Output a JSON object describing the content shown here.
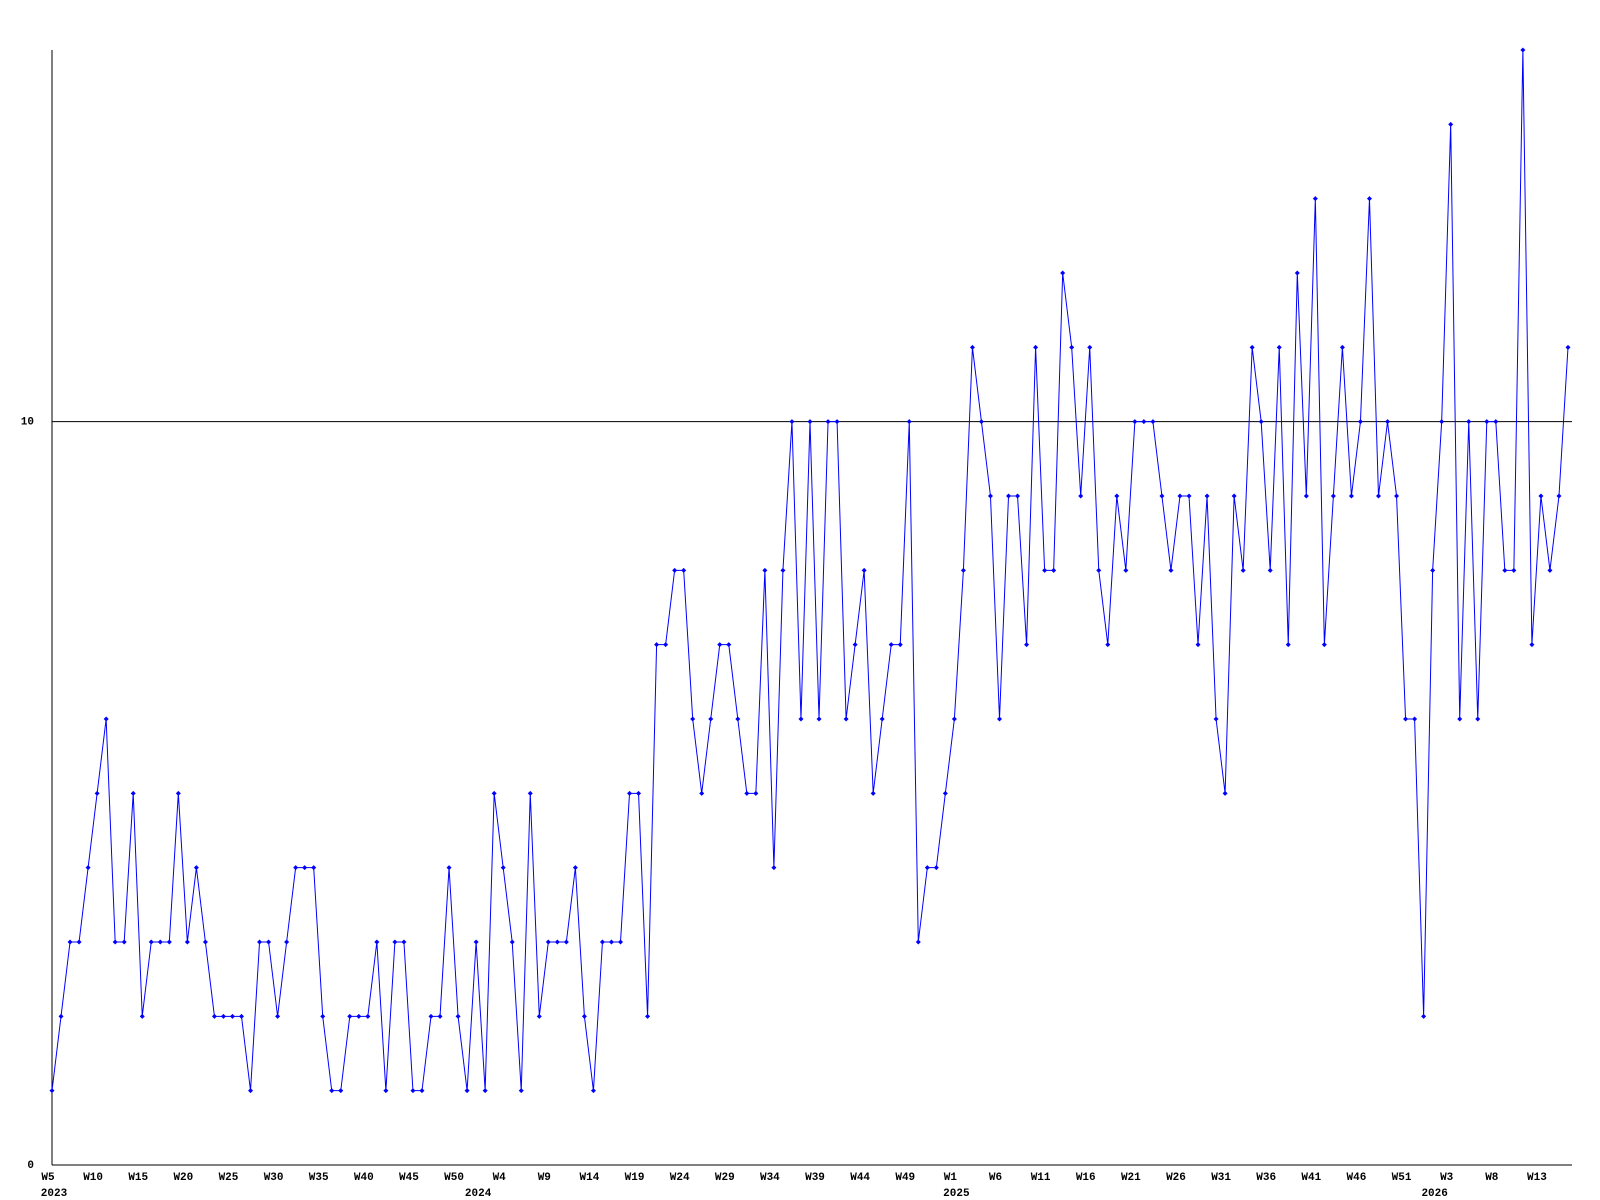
{
  "chart_data": {
    "type": "line",
    "color": "#0000ff",
    "ylim": [
      0,
      15
    ],
    "yticks": [
      0,
      10
    ],
    "grid": true,
    "categories": [
      "W5",
      null,
      null,
      null,
      null,
      "W10",
      null,
      null,
      null,
      null,
      "W15",
      null,
      null,
      null,
      null,
      "W20",
      null,
      null,
      null,
      null,
      "W25",
      null,
      null,
      null,
      null,
      "W30",
      null,
      null,
      null,
      null,
      "W35",
      null,
      null,
      null,
      null,
      "W40",
      null,
      null,
      null,
      null,
      "W45",
      null,
      null,
      null,
      null,
      "W50",
      null,
      null,
      null,
      null,
      "W4",
      null,
      null,
      null,
      null,
      "W9",
      null,
      null,
      null,
      null,
      "W14",
      null,
      null,
      null,
      null,
      "W19",
      null,
      null,
      null,
      null,
      "W24",
      null,
      null,
      null,
      null,
      "W29",
      null,
      null,
      null,
      null,
      "W34",
      null,
      null,
      null,
      null,
      "W39",
      null,
      null,
      null,
      null,
      "W44",
      null,
      null,
      null,
      null,
      "W49",
      null,
      null,
      null,
      null,
      "W1",
      null,
      null,
      null,
      null,
      "W6",
      null,
      null,
      null,
      null,
      "W11",
      null,
      null,
      null,
      null,
      "W16",
      null,
      null,
      null,
      null,
      "W21",
      null,
      null,
      null,
      null,
      "W26",
      null,
      null,
      null,
      null,
      "W31",
      null,
      null,
      null,
      null,
      "W36",
      null,
      null,
      null,
      null,
      "W41",
      null,
      null,
      null,
      null,
      "W46",
      null,
      null,
      null,
      null,
      "W51",
      null,
      null,
      null,
      null,
      "W3",
      null,
      null,
      null,
      null,
      "W8",
      null,
      null,
      null,
      null,
      "W13",
      null,
      null,
      null
    ],
    "x_groups": [
      {
        "label": "2023",
        "count": 47
      },
      {
        "label": "2024",
        "count": 53
      },
      {
        "label": "2025",
        "count": 53
      },
      {
        "label": "2026",
        "count": 16
      }
    ],
    "values": [
      1,
      2,
      3,
      3,
      4,
      5,
      6,
      3,
      3,
      5,
      2,
      3,
      3,
      3,
      5,
      3,
      4,
      3,
      2,
      2,
      2,
      2,
      1,
      3,
      3,
      2,
      3,
      4,
      4,
      4,
      2,
      1,
      1,
      2,
      2,
      2,
      3,
      1,
      3,
      3,
      1,
      1,
      2,
      2,
      4,
      2,
      1,
      3,
      1,
      5,
      4,
      3,
      1,
      5,
      2,
      3,
      3,
      3,
      4,
      2,
      1,
      3,
      3,
      3,
      5,
      5,
      2,
      7,
      7,
      8,
      8,
      6,
      5,
      6,
      7,
      7,
      6,
      5,
      5,
      8,
      4,
      8,
      10,
      6,
      10,
      6,
      10,
      10,
      6,
      7,
      8,
      5,
      6,
      7,
      7,
      10,
      3,
      4,
      4,
      5,
      6,
      8,
      11,
      10,
      9,
      6,
      9,
      9,
      7,
      11,
      8,
      8,
      12,
      11,
      9,
      11,
      8,
      7,
      9,
      8,
      10,
      10,
      10,
      9,
      8,
      9,
      9,
      7,
      9,
      6,
      5,
      9,
      8,
      11,
      10,
      8,
      11,
      7,
      12,
      9,
      13,
      7,
      9,
      11,
      9,
      10,
      13,
      9,
      10,
      9,
      6,
      6,
      2,
      8,
      10,
      14,
      6,
      10,
      6,
      10,
      10,
      8,
      8,
      15,
      7,
      9,
      8,
      9,
      11
    ]
  }
}
